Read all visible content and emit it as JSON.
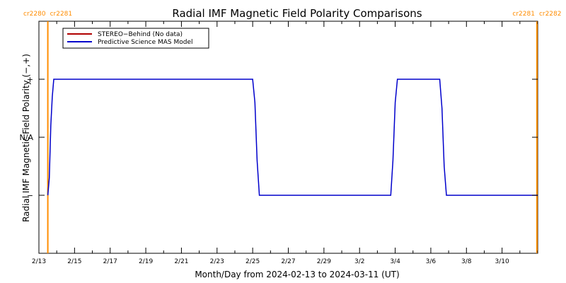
{
  "chart_data": {
    "type": "line",
    "title": "Radial IMF Magnetic Field Polarity Comparisons",
    "xlabel": "Month/Day from 2024-02-13 to 2024-03-11 (UT)",
    "ylabel": "Radial IMF Magnetic Field Polarity (−,+)",
    "xlim": [
      "2024-02-13",
      "2024-03-12"
    ],
    "ylim": [
      -2,
      2
    ],
    "y_ticks": [
      {
        "value": 1,
        "label": "+"
      },
      {
        "value": 0,
        "label": "N/A"
      },
      {
        "value": -1,
        "label": "−"
      }
    ],
    "x_ticks": [
      {
        "date": "2024-02-13",
        "label": "2/13"
      },
      {
        "date": "2024-02-15",
        "label": "2/15"
      },
      {
        "date": "2024-02-17",
        "label": "2/17"
      },
      {
        "date": "2024-02-19",
        "label": "2/19"
      },
      {
        "date": "2024-02-21",
        "label": "2/21"
      },
      {
        "date": "2024-02-23",
        "label": "2/23"
      },
      {
        "date": "2024-02-25",
        "label": "2/25"
      },
      {
        "date": "2024-02-27",
        "label": "2/27"
      },
      {
        "date": "2024-02-29",
        "label": "2/29"
      },
      {
        "date": "2024-03-02",
        "label": "3/2"
      },
      {
        "date": "2024-03-04",
        "label": "3/4"
      },
      {
        "date": "2024-03-06",
        "label": "3/6"
      },
      {
        "date": "2024-03-08",
        "label": "3/8"
      },
      {
        "date": "2024-03-10",
        "label": "3/10"
      }
    ],
    "series": [
      {
        "name": "STEREO−Behind (No data)",
        "color": "#b00000",
        "points": []
      },
      {
        "name": "Predictive Science MAS Model",
        "color": "#0000cc",
        "points": [
          {
            "x": "2024-02-13T12:00",
            "y": -1
          },
          {
            "x": "2024-02-13T14:00",
            "y": -0.7
          },
          {
            "x": "2024-02-13T16:00",
            "y": 0.2
          },
          {
            "x": "2024-02-13T18:00",
            "y": 0.7
          },
          {
            "x": "2024-02-13T20:00",
            "y": 1
          },
          {
            "x": "2024-02-25T00:00",
            "y": 1
          },
          {
            "x": "2024-02-25T03:00",
            "y": 0.6
          },
          {
            "x": "2024-02-25T06:00",
            "y": -0.4
          },
          {
            "x": "2024-02-25T09:00",
            "y": -1
          },
          {
            "x": "2024-03-03T18:00",
            "y": -1
          },
          {
            "x": "2024-03-03T21:00",
            "y": -0.4
          },
          {
            "x": "2024-03-04T00:00",
            "y": 0.6
          },
          {
            "x": "2024-03-04T03:00",
            "y": 1
          },
          {
            "x": "2024-03-06T12:00",
            "y": 1
          },
          {
            "x": "2024-03-06T15:00",
            "y": 0.5
          },
          {
            "x": "2024-03-06T18:00",
            "y": -0.5
          },
          {
            "x": "2024-03-06T21:00",
            "y": -1
          },
          {
            "x": "2024-03-12T00:00",
            "y": -1
          }
        ]
      }
    ],
    "carrington_markers": [
      {
        "x": "2024-02-13T12:00",
        "labels": [
          "cr2280",
          "cr2281"
        ],
        "side": "left"
      },
      {
        "x": "2024-03-11T23:00",
        "labels": [
          "cr2281",
          "cr2282"
        ],
        "side": "right"
      }
    ],
    "marker_color": "#ff8c00",
    "legend_position": "top-left",
    "grid": false
  }
}
